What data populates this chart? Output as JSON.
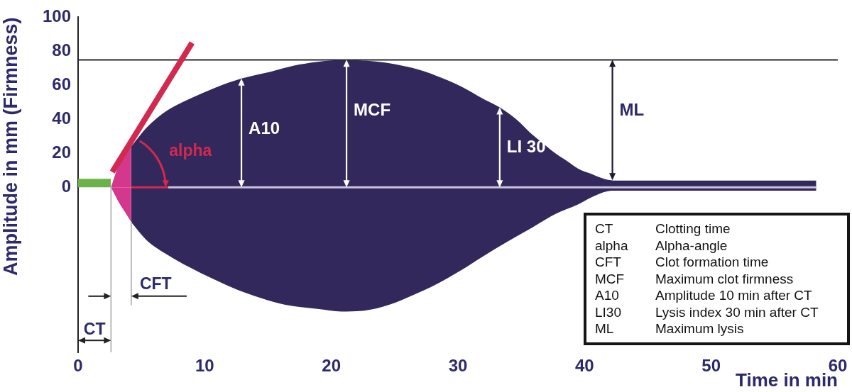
{
  "chart_data": {
    "type": "area",
    "xlabel": "Time in min",
    "ylabel": "Amplitude in mm (Firmness)",
    "xlim": [
      0,
      60
    ],
    "ylim": [
      -97,
      100
    ],
    "xticks": [
      0,
      10,
      20,
      30,
      40,
      50,
      60
    ],
    "yticks": [
      0,
      20,
      40,
      60,
      80,
      100
    ],
    "series": [
      {
        "color": "#33285c",
        "x": [
          4.2,
          5.4,
          7,
          8.8,
          10.8,
          12.9,
          15.2,
          17,
          18.9,
          20.8,
          22.7,
          24.6,
          26.5,
          28.3,
          30.2,
          32,
          33.3,
          34.6,
          35.8,
          36.7,
          37.6,
          38.6,
          39.5,
          40.5,
          41.4,
          42.3,
          45,
          50,
          55,
          58.3
        ],
        "values": [
          24,
          35,
          45,
          52,
          58.5,
          64,
          68,
          71.5,
          73.8,
          75,
          74.5,
          73,
          70,
          65.6,
          59.5,
          52,
          47,
          40,
          31.5,
          26,
          20.5,
          15.5,
          11,
          8,
          5.3,
          4,
          4,
          4,
          4,
          4
        ]
      },
      {
        "color": "#33285c",
        "x": [
          4.2,
          5.4,
          6.9,
          8.8,
          10.7,
          12.5,
          14.4,
          16.3,
          18.9,
          20.8,
          22.6,
          24.6,
          26.4,
          28.3,
          30.2,
          32,
          33.9,
          35.8,
          37.6,
          39.5,
          40.5,
          41.7,
          42.3,
          45,
          50,
          55,
          58.3
        ],
        "values": [
          -20.5,
          -31,
          -39,
          -47,
          -54,
          -60,
          -65,
          -69,
          -71.5,
          -73,
          -72.5,
          -69,
          -63.5,
          -57,
          -49,
          -40.5,
          -32,
          -24,
          -16,
          -10,
          -6,
          -2.5,
          -2,
          -2,
          -2,
          -2,
          -2
        ]
      },
      {
        "color": "#d4388c",
        "x": [
          2.6,
          3,
          3.5,
          4.2
        ],
        "values": [
          0,
          9,
          17.6,
          24
        ]
      },
      {
        "color": "#d4388c",
        "x": [
          2.6,
          3.2,
          3.7,
          4.2
        ],
        "values": [
          0,
          -8.6,
          -14.5,
          -20.5
        ]
      },
      {
        "color": "#6cb24a",
        "x": [
          0,
          2.6
        ],
        "values": [
          5,
          5
        ]
      },
      {
        "type": "line",
        "color": "#c9c1de",
        "x": [
          7.1,
          58.3
        ],
        "values": [
          0,
          0
        ]
      },
      {
        "type": "line",
        "color": "#d1294f",
        "x": [
          4.2,
          7.1
        ],
        "values": [
          0,
          0
        ]
      },
      {
        "type": "line",
        "color": "#d1294f",
        "x": [
          2.7,
          9
        ],
        "values": [
          9,
          85
        ]
      },
      {
        "type": "line",
        "color": "#bcbcbc",
        "x": [
          2.6,
          2.6
        ],
        "values": [
          0,
          -97
        ]
      },
      {
        "type": "line",
        "color": "#bcbcbc",
        "x": [
          4.2,
          4.2
        ],
        "values": [
          -20.5,
          -69
        ]
      }
    ],
    "ref_lines": [
      {
        "axis": "y",
        "value": 75,
        "color": "#2b2b2b"
      }
    ],
    "annotations": [
      {
        "text": "A10",
        "x": 12.9,
        "y": 64
      },
      {
        "text": "MCF",
        "x": 21.2,
        "y": 75
      },
      {
        "text": "LI 30",
        "x": 33.3,
        "y": 47
      },
      {
        "text": "ML",
        "x": 42.2,
        "y": 75
      },
      "alpha",
      {
        "text": "CT",
        "x": 2.6,
        "y": -90
      },
      {
        "text": "CFT",
        "x": 4.2,
        "y": -64
      },
      "CT\tClotting time",
      "alpha\tAlpha-angle",
      "CFT\tClot formation time",
      "MCF\tMaximum clot firmness",
      "A10\tAmplitude 10 min after CT",
      "LI30\tLysis index 30 min after CT",
      "ML\tMaximum lysis"
    ]
  }
}
